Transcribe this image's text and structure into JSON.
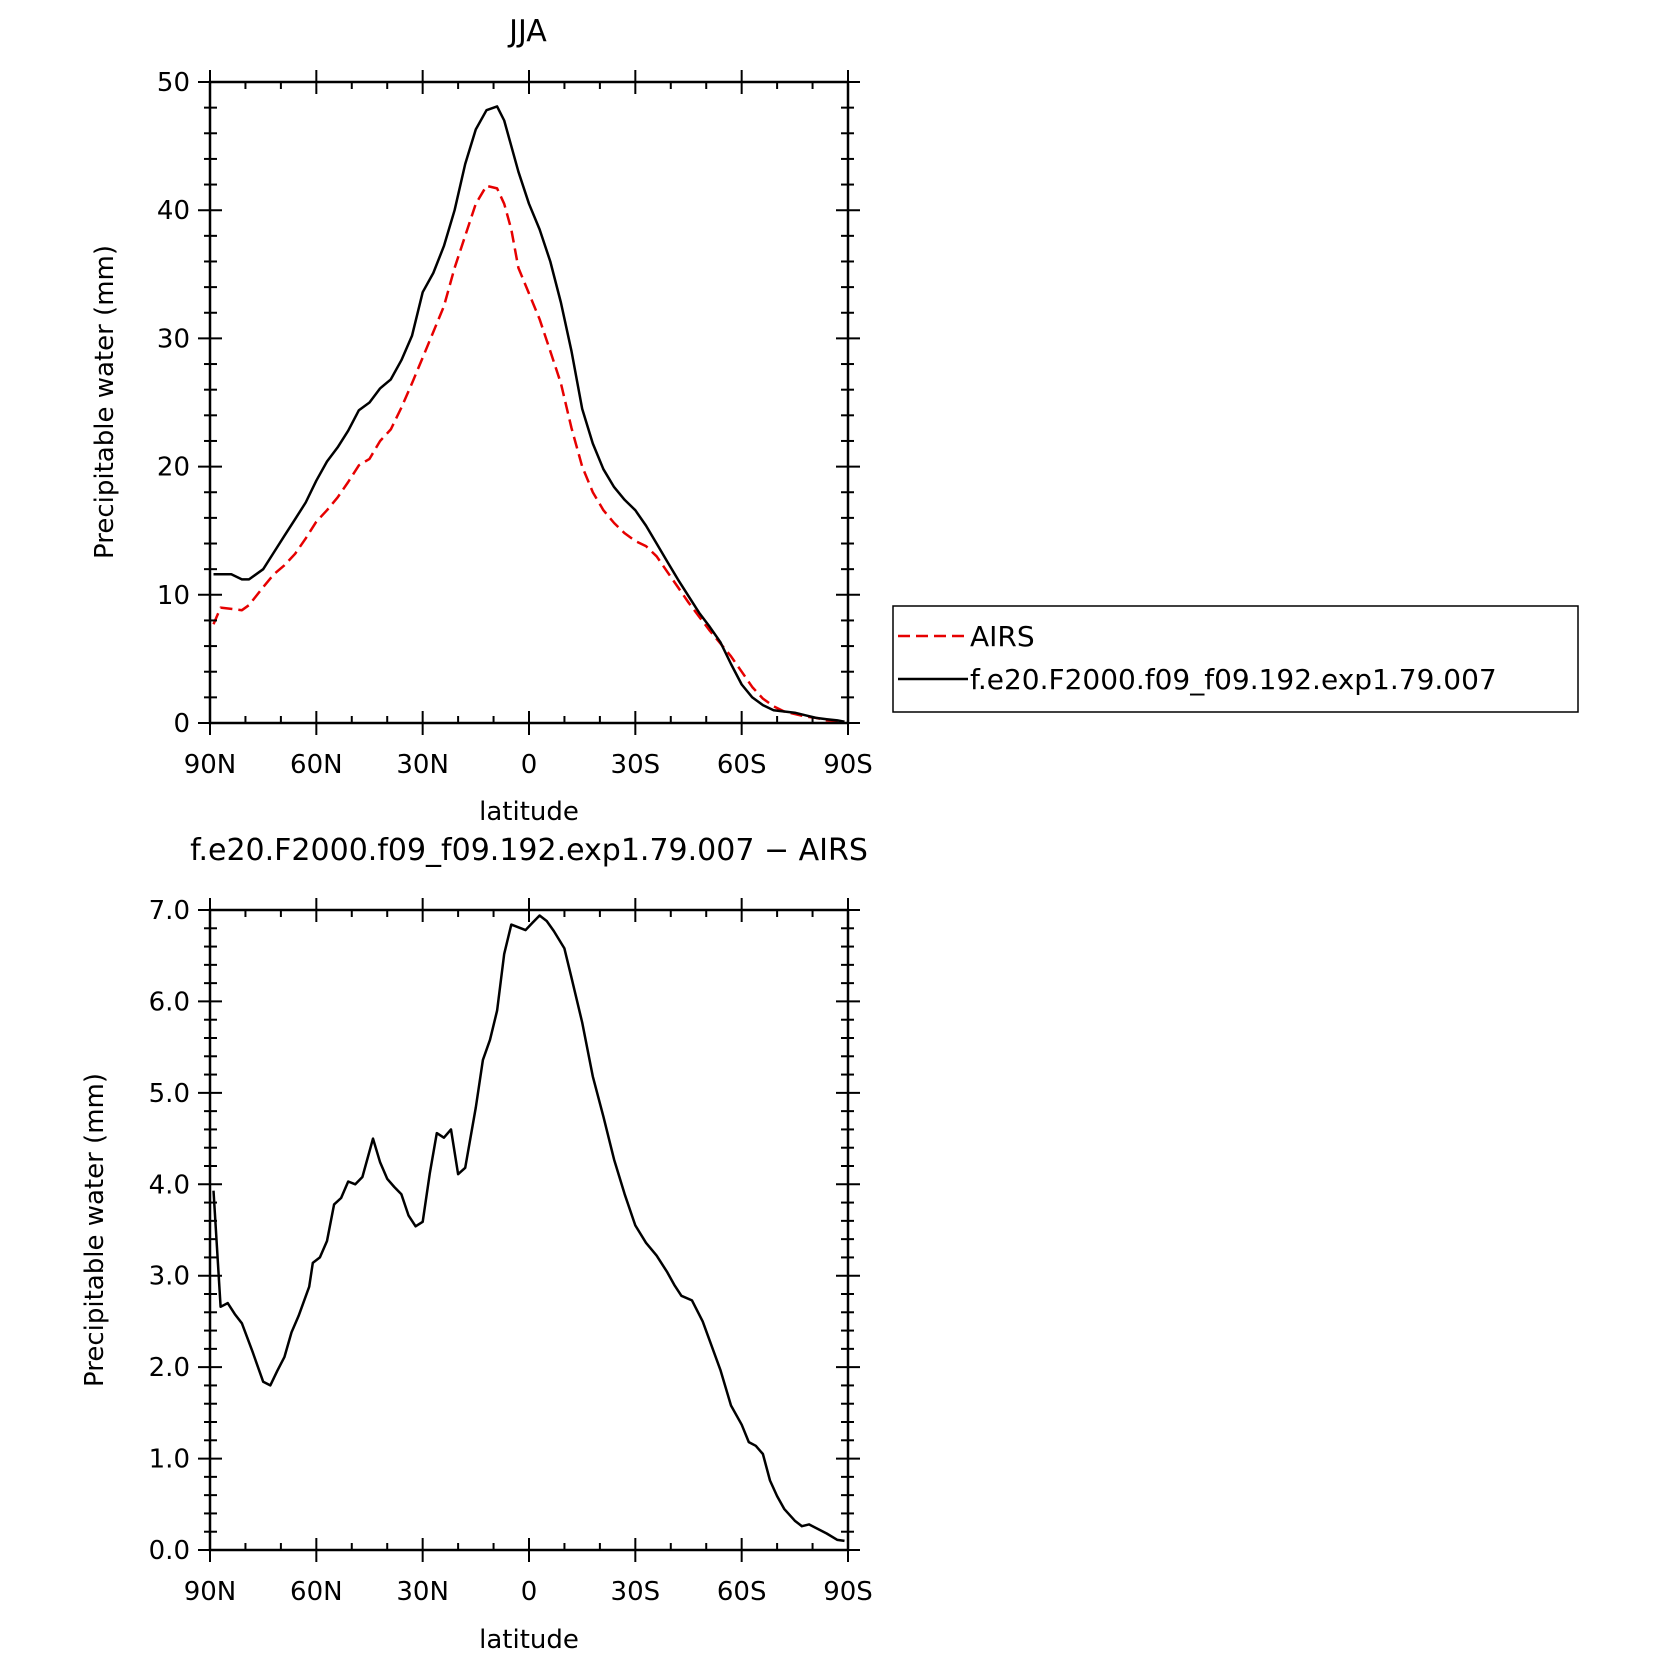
{
  "chart_data": [
    {
      "type": "line",
      "title": "JJA",
      "xlabel": "latitude",
      "ylabel": "Precipitable water (mm)",
      "xlim": [
        90,
        -90
      ],
      "ylim": [
        0,
        50
      ],
      "x_tick_labels": [
        "90N",
        "60N",
        "30N",
        "0",
        "30S",
        "60S",
        "90S"
      ],
      "y_tick_labels": [
        "0",
        "10",
        "20",
        "30",
        "40",
        "50"
      ],
      "grid": false,
      "legend": {
        "placement": "right, outside plot",
        "entries": [
          "AIRS",
          "f.e20.F2000.f09_f09.192.exp1.79.007"
        ]
      },
      "x": [
        89,
        87,
        84,
        81,
        79,
        75,
        72,
        69,
        66,
        63,
        60,
        57,
        54,
        51,
        48,
        45,
        42,
        39,
        36,
        33,
        30,
        27,
        24,
        21,
        18,
        15,
        12,
        9,
        7,
        5,
        3,
        0,
        -3,
        -6,
        -9,
        -12,
        -15,
        -18,
        -21,
        -24,
        -27,
        -30,
        -33,
        -36,
        -39,
        -42,
        -45,
        -48,
        -51,
        -54,
        -57,
        -60,
        -63,
        -66,
        -69,
        -72,
        -75,
        -78,
        -81,
        -84,
        -87,
        -89
      ],
      "series": [
        {
          "name": "AIRS",
          "color": "#e60000",
          "dash": "dashed",
          "values": [
            7.7,
            9.0,
            8.9,
            8.8,
            9.2,
            10.6,
            11.6,
            12.3,
            13.2,
            14.4,
            15.7,
            16.6,
            17.6,
            18.8,
            20.1,
            20.6,
            22.0,
            22.9,
            24.6,
            26.5,
            28.5,
            30.5,
            32.5,
            35.5,
            38.0,
            40.5,
            41.9,
            41.7,
            40.5,
            38.5,
            35.5,
            33.5,
            31.5,
            29.0,
            26.5,
            23.0,
            20.0,
            18.0,
            16.6,
            15.6,
            14.8,
            14.2,
            13.8,
            13.0,
            11.8,
            10.6,
            9.4,
            8.3,
            7.2,
            6.2,
            5.2,
            4.0,
            2.8,
            1.9,
            1.3,
            0.9,
            0.7,
            0.5,
            0.4,
            0.2,
            0.15,
            0.1
          ]
        },
        {
          "name": "f.e20.F2000.f09_f09.192.exp1.79.007",
          "color": "#000000",
          "dash": "solid",
          "values": [
            11.6,
            11.6,
            11.6,
            11.2,
            11.2,
            12.0,
            13.3,
            14.6,
            15.9,
            17.2,
            18.9,
            20.4,
            21.5,
            22.8,
            24.4,
            25.0,
            26.1,
            26.8,
            28.3,
            30.2,
            33.6,
            35.1,
            37.2,
            40.0,
            43.6,
            46.3,
            47.8,
            48.1,
            47.0,
            45.0,
            43.0,
            40.5,
            38.5,
            36.0,
            32.8,
            29.0,
            24.5,
            21.8,
            19.8,
            18.4,
            17.4,
            16.6,
            15.4,
            14.0,
            12.6,
            11.2,
            9.9,
            8.6,
            7.5,
            6.3,
            4.6,
            3.0,
            2.0,
            1.4,
            1.0,
            0.9,
            0.8,
            0.6,
            0.4,
            0.3,
            0.2,
            0.1
          ]
        }
      ]
    },
    {
      "type": "line",
      "title": "f.e20.F2000.f09_f09.192.exp1.79.007 − AIRS",
      "xlabel": "latitude",
      "ylabel": "Precipitable water (mm)",
      "xlim": [
        90,
        -90
      ],
      "ylim": [
        0,
        7
      ],
      "x_tick_labels": [
        "90N",
        "60N",
        "30N",
        "0",
        "30S",
        "60S",
        "90S"
      ],
      "y_tick_labels": [
        "0.0",
        "1.0",
        "2.0",
        "3.0",
        "4.0",
        "5.0",
        "6.0",
        "7.0"
      ],
      "grid": false,
      "x": [
        89,
        87,
        85,
        83,
        81,
        78,
        75,
        73,
        71,
        69,
        67,
        65,
        62,
        61,
        59,
        57,
        55,
        53,
        51,
        49,
        47,
        44,
        42,
        40,
        38,
        36,
        34,
        32,
        30,
        28,
        26,
        24,
        22,
        20,
        18,
        15,
        13,
        11,
        9,
        7,
        5,
        1,
        -1,
        -3,
        -5,
        -7,
        -10,
        -12,
        -15,
        -18,
        -21,
        -24,
        -27,
        -30,
        -33,
        -36,
        -39,
        -41,
        -43,
        -46,
        -49,
        -54,
        -57,
        -60,
        -62,
        -64,
        -66,
        -68,
        -70,
        -72,
        -75,
        -77,
        -79,
        -84,
        -87,
        -89
      ],
      "series": [
        {
          "name": "",
          "color": "#000000",
          "dash": "solid",
          "values": [
            3.93,
            2.66,
            2.7,
            2.58,
            2.48,
            2.17,
            1.84,
            1.8,
            1.96,
            2.11,
            2.38,
            2.56,
            2.88,
            3.14,
            3.2,
            3.38,
            3.78,
            3.85,
            4.03,
            4.0,
            4.08,
            4.5,
            4.24,
            4.06,
            3.97,
            3.89,
            3.66,
            3.54,
            3.59,
            4.12,
            4.56,
            4.51,
            4.6,
            4.11,
            4.18,
            4.84,
            5.36,
            5.58,
            5.9,
            6.52,
            6.84,
            6.78,
            6.86,
            6.94,
            6.88,
            6.77,
            6.58,
            6.26,
            5.77,
            5.18,
            4.74,
            4.27,
            3.89,
            3.55,
            3.36,
            3.22,
            3.04,
            2.9,
            2.78,
            2.73,
            2.5,
            1.97,
            1.58,
            1.37,
            1.18,
            1.14,
            1.05,
            0.76,
            0.59,
            0.45,
            0.32,
            0.26,
            0.28,
            0.18,
            0.11,
            0.1
          ]
        }
      ]
    }
  ]
}
